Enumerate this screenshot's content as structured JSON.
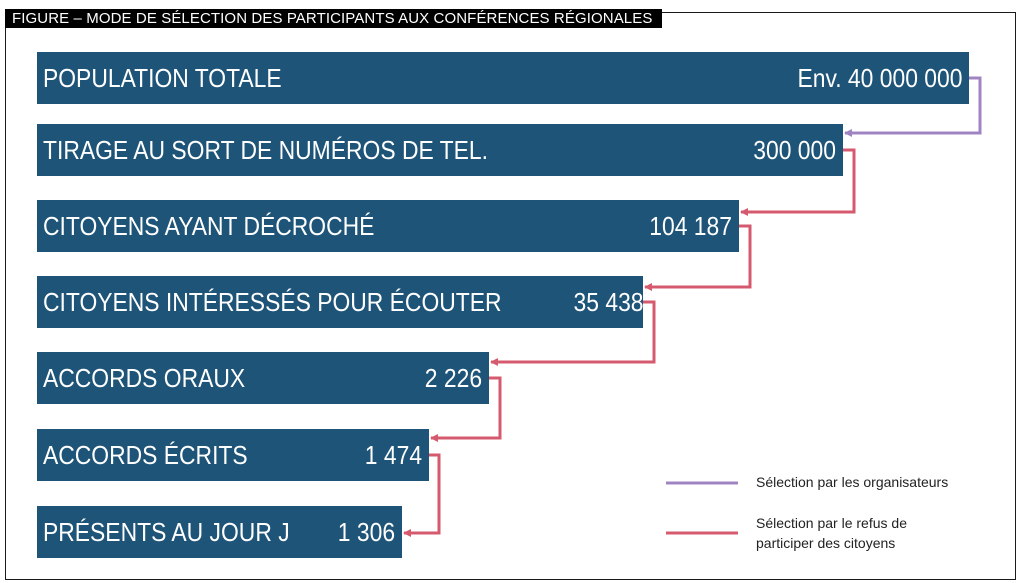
{
  "figure": {
    "title": "FIGURE – MODE DE SÉLECTION DES PARTICIPANTS AUX CONFÉRENCES RÉGIONALES"
  },
  "colors": {
    "bar": "#1e5478",
    "organisers": "#a084c2",
    "refusal": "#d65a6e"
  },
  "steps": [
    {
      "label": "POPULATION TOTALE",
      "value": "Env. 40 000 000"
    },
    {
      "label": "TIRAGE AU SORT DE NUMÉROS DE TEL.",
      "value": "300 000"
    },
    {
      "label": "CITOYENS AYANT DÉCROCHÉ",
      "value": "104 187"
    },
    {
      "label": "CITOYENS INTÉRESSÉS POUR ÉCOUTER",
      "value": "35 438"
    },
    {
      "label": "ACCORDS ORAUX",
      "value": "2 226"
    },
    {
      "label": "ACCORDS ÉCRITS",
      "value": "1 474"
    },
    {
      "label": "PRÉSENTS AU JOUR J",
      "value": "1 306"
    }
  ],
  "legend": {
    "organisers": "Sélection par les organisateurs",
    "refusal_line1": "Sélection par le refus de",
    "refusal_line2": "participer des citoyens"
  }
}
